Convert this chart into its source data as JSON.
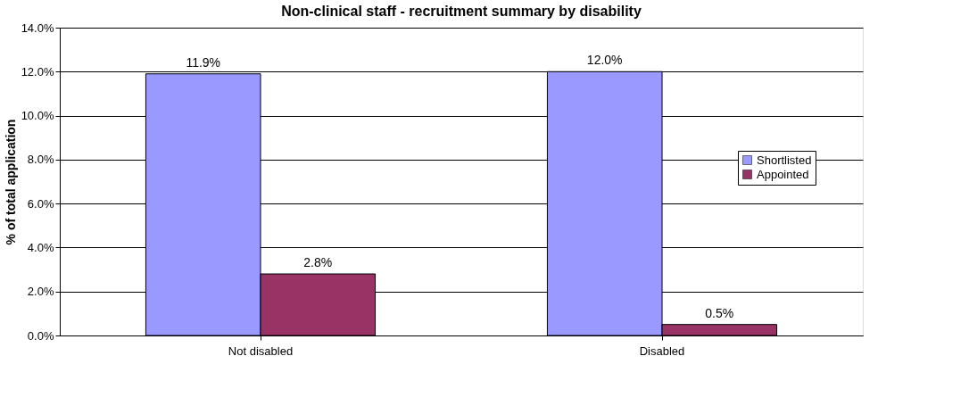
{
  "chart_data": {
    "type": "bar",
    "title": "Non-clinical staff - recruitment summary by disability",
    "ylabel": "% of total application",
    "categories": [
      "Not disabled",
      "Disabled"
    ],
    "series": [
      {
        "name": "Shortlisted",
        "color": "#9999ff",
        "values": [
          11.9,
          12.0
        ],
        "value_labels": [
          "11.9%",
          "12.0%"
        ]
      },
      {
        "name": "Appointed",
        "color": "#993366",
        "values": [
          2.8,
          0.5
        ],
        "value_labels": [
          "2.8%",
          "0.5%"
        ]
      }
    ],
    "ylim": [
      0,
      14
    ],
    "yticks": [
      {
        "value": 0,
        "label": "0.0%"
      },
      {
        "value": 2,
        "label": "2.0%"
      },
      {
        "value": 4,
        "label": "4.0%"
      },
      {
        "value": 6,
        "label": "6.0%"
      },
      {
        "value": 8,
        "label": "8.0%"
      },
      {
        "value": 10,
        "label": "10.0%"
      },
      {
        "value": 12,
        "label": "12.0%"
      },
      {
        "value": 14,
        "label": "14.0%"
      }
    ],
    "grid": "y",
    "legend": "right"
  }
}
